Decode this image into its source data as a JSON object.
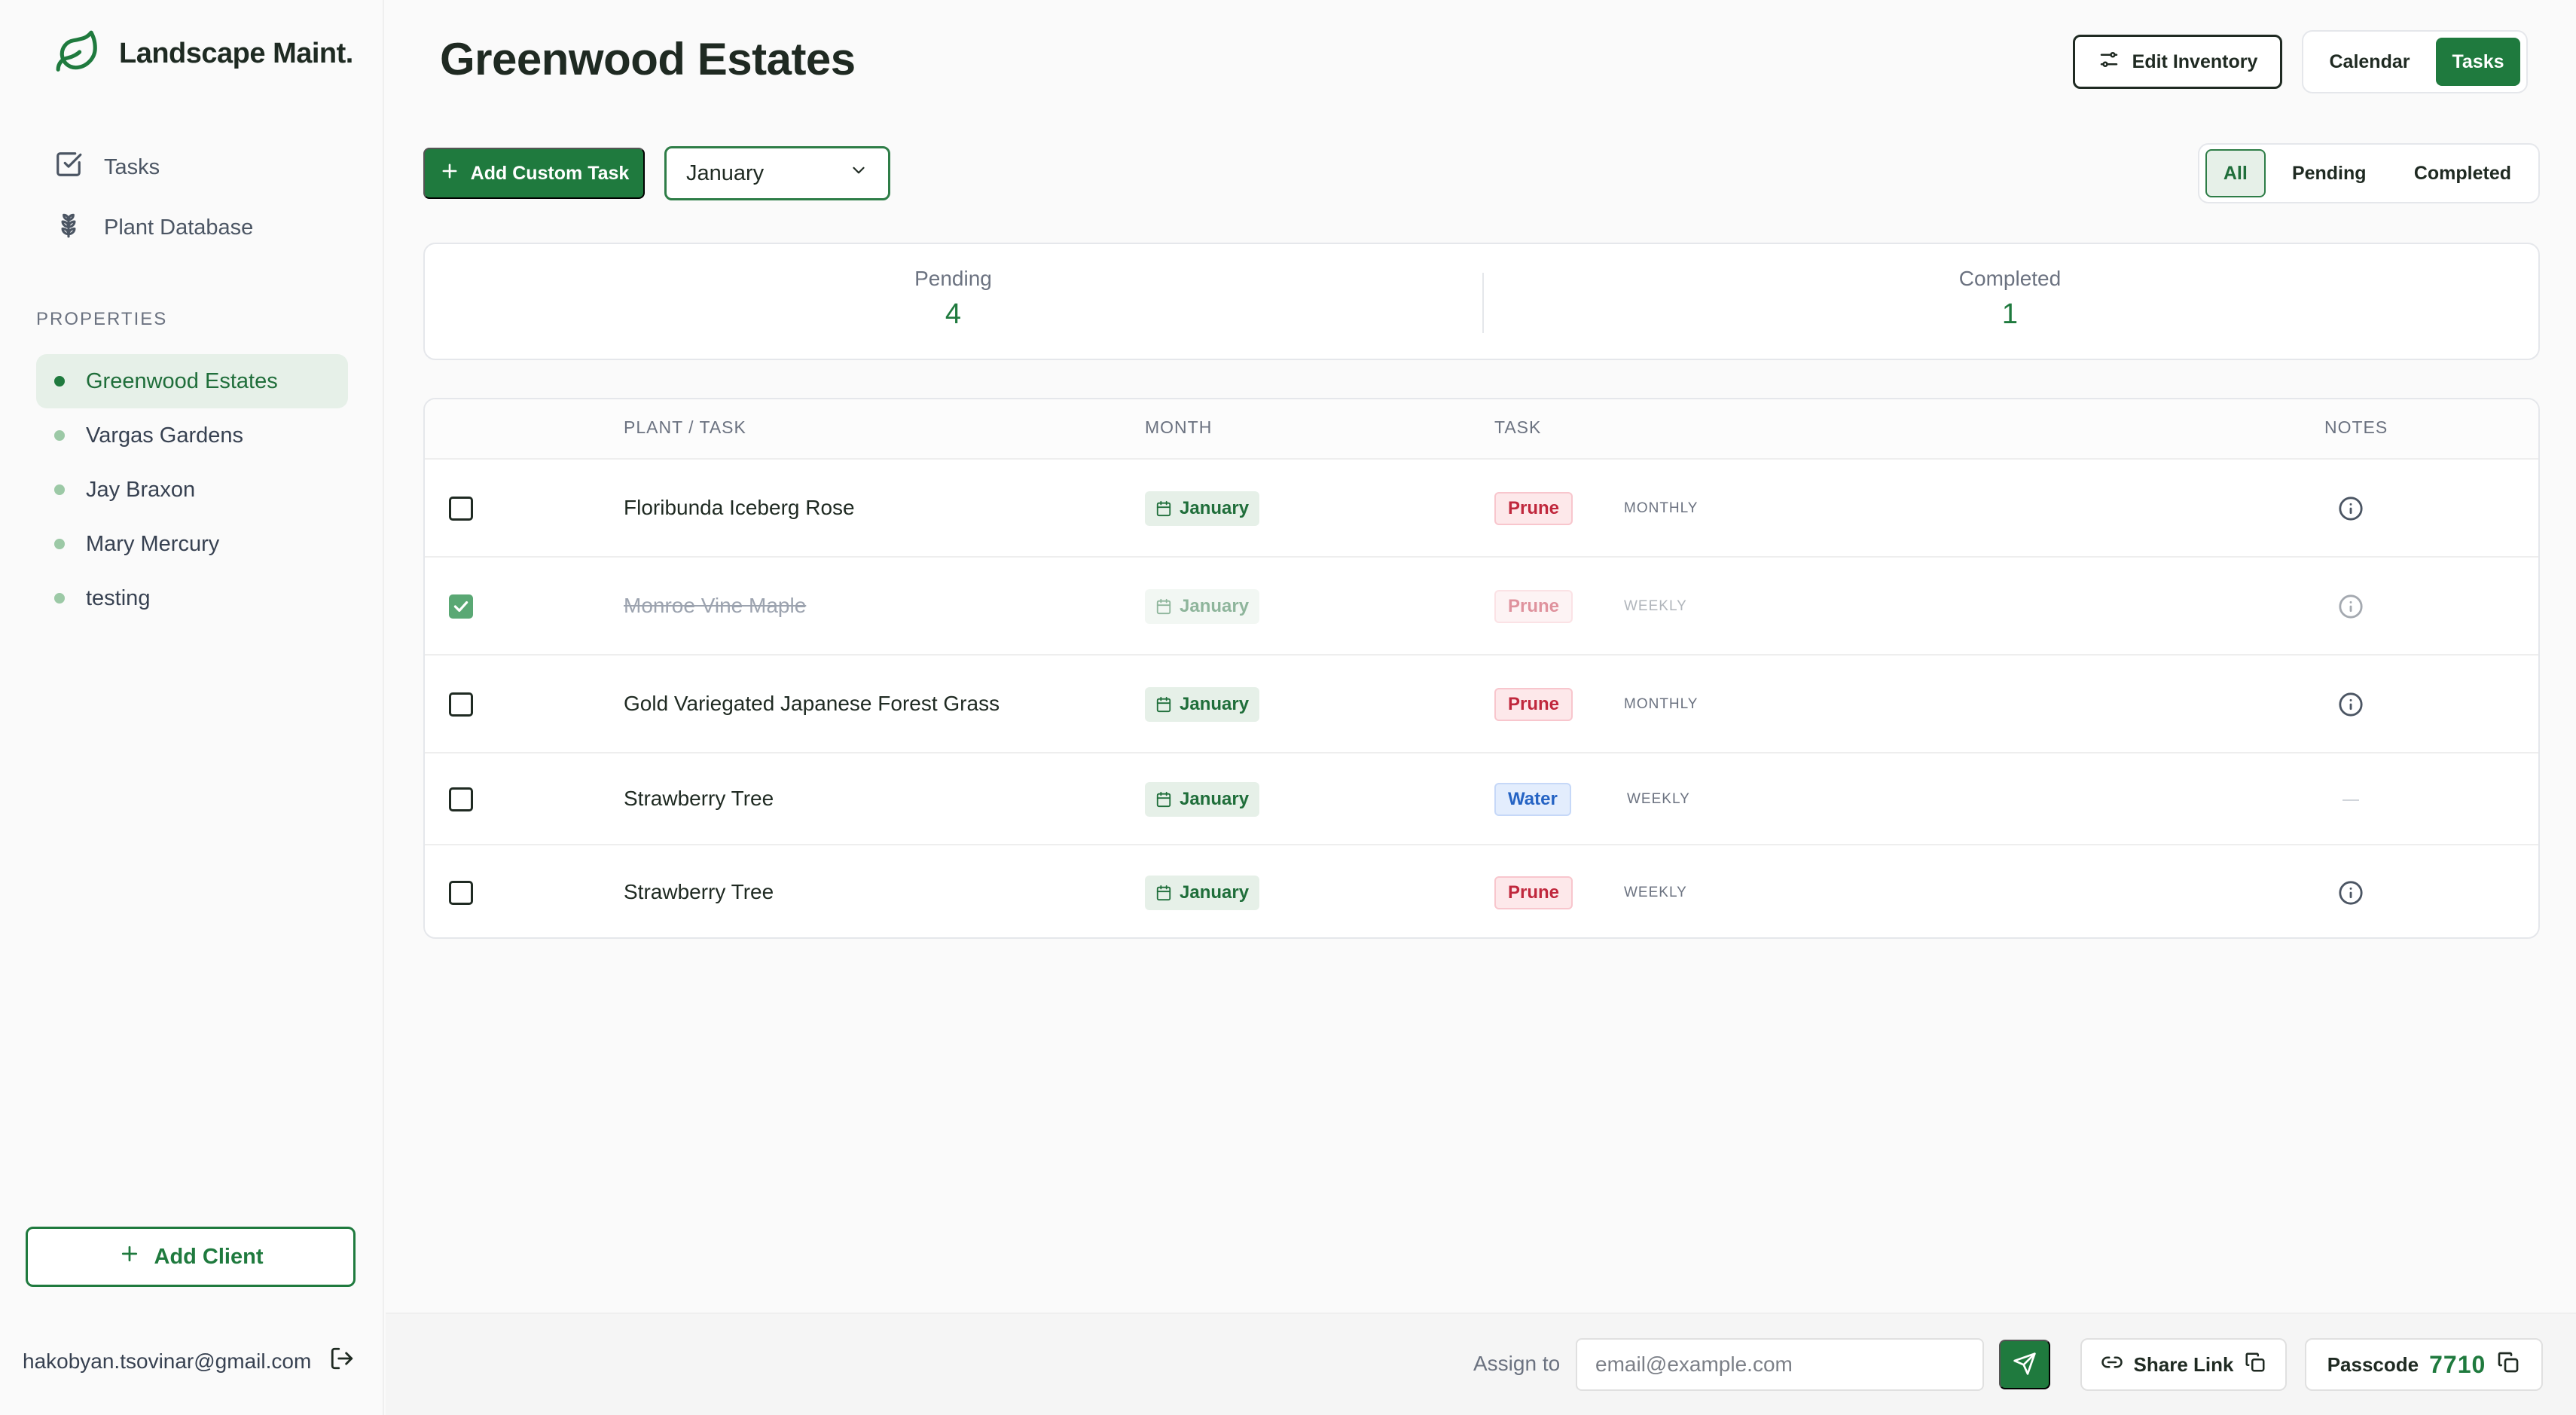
{
  "brand": {
    "name": "Landscape Maint.",
    "accent": "#1f7a3e"
  },
  "nav": [
    {
      "label": "Tasks",
      "icon": "checkbox-icon"
    },
    {
      "label": "Plant Database",
      "icon": "plant-icon"
    }
  ],
  "properties": {
    "heading": "PROPERTIES",
    "items": [
      {
        "label": "Greenwood Estates",
        "active": true
      },
      {
        "label": "Vargas Gardens",
        "active": false
      },
      {
        "label": "Jay Braxon",
        "active": false
      },
      {
        "label": "Mary Mercury",
        "active": false
      },
      {
        "label": "testing",
        "active": false
      }
    ]
  },
  "sidebar_footer": {
    "add_client_label": "Add Client",
    "user_email": "hakobyan.tsovinar@gmail.com"
  },
  "header": {
    "title": "Greenwood Estates",
    "edit_inventory_label": "Edit Inventory",
    "view_toggle": {
      "calendar": "Calendar",
      "tasks": "Tasks",
      "selected": "Tasks"
    }
  },
  "toolbar": {
    "add_task_label": "Add Custom Task",
    "month_selected": "January",
    "filters": {
      "all": "All",
      "pending": "Pending",
      "completed": "Completed",
      "selected": "All"
    }
  },
  "stats": {
    "pending_label": "Pending",
    "pending_value": "4",
    "completed_label": "Completed",
    "completed_value": "1"
  },
  "table": {
    "headers": {
      "plant": "PLANT / TASK",
      "month": "MONTH",
      "task": "TASK",
      "notes": "NOTES"
    },
    "rows": [
      {
        "plant": "Floribunda Iceberg Rose",
        "month": "January",
        "task": "Prune",
        "task_type": "prune",
        "frequency": "MONTHLY",
        "done": false,
        "has_note": true
      },
      {
        "plant": "Monroe Vine Maple",
        "month": "January",
        "task": "Prune",
        "task_type": "prune",
        "frequency": "WEEKLY",
        "done": true,
        "has_note": true
      },
      {
        "plant": "Gold Variegated Japanese Forest Grass",
        "month": "January",
        "task": "Prune",
        "task_type": "prune",
        "frequency": "MONTHLY",
        "done": false,
        "has_note": true
      },
      {
        "plant": "Strawberry Tree",
        "month": "January",
        "task": "Water",
        "task_type": "water",
        "frequency": "WEEKLY",
        "done": false,
        "has_note": false
      },
      {
        "plant": "Strawberry Tree",
        "month": "January",
        "task": "Prune",
        "task_type": "prune",
        "frequency": "WEEKLY",
        "done": false,
        "has_note": true
      }
    ]
  },
  "bottom_bar": {
    "assign_label": "Assign to",
    "email_placeholder": "email@example.com",
    "share_label": "Share Link",
    "passcode_label": "Passcode",
    "passcode_value": "7710"
  }
}
